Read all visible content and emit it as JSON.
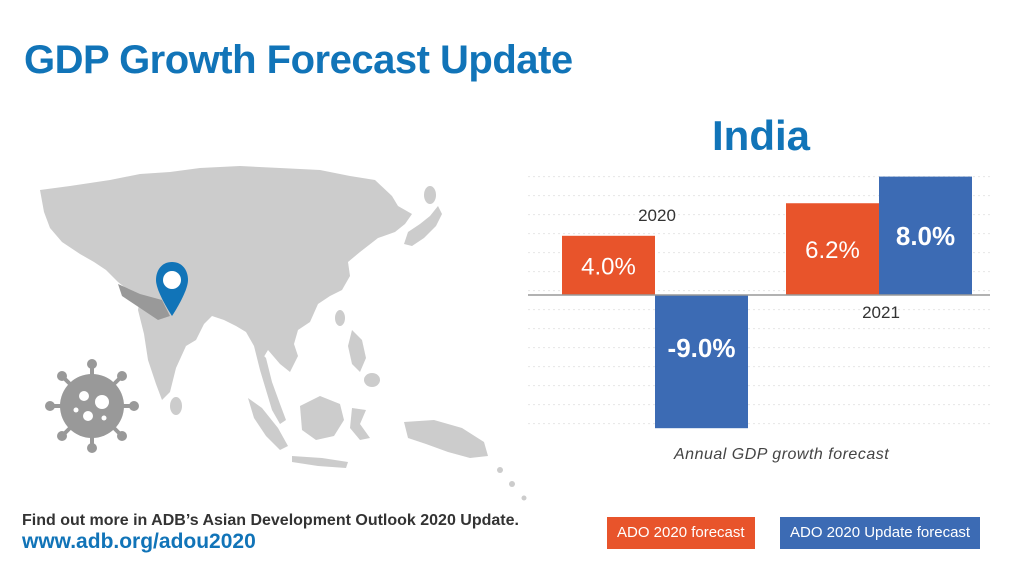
{
  "title": "GDP Growth Forecast Update",
  "country": "India",
  "footer": {
    "text": "Find out more in ADB’s Asian Development Outlook 2020 Update.",
    "link": "www.adb.org/adou2020"
  },
  "icons": {
    "map": "asia-map-icon",
    "pin": "location-pin-icon",
    "virus": "coronavirus-icon"
  },
  "colors": {
    "title": "#1174b8",
    "ado": "#e8542b",
    "update": "#3c6bb4",
    "map": "#cccccc"
  },
  "chart_data": {
    "type": "bar",
    "categories": [
      "2020",
      "2021"
    ],
    "series": [
      {
        "name": "ADO 2020 forecast",
        "values": [
          4.0,
          6.2
        ],
        "labels": [
          "4.0%",
          "6.2%"
        ],
        "color": "#e8542b"
      },
      {
        "name": "ADO 2020 Update forecast",
        "values": [
          -9.0,
          8.0
        ],
        "labels": [
          "-9.0%",
          "8.0%"
        ],
        "color": "#3c6bb4"
      }
    ],
    "caption": "Annual GDP growth forecast",
    "ylim": [
      -9.0,
      8.0
    ],
    "grid": true,
    "legend": [
      "ADO 2020 forecast",
      "ADO 2020 Update forecast"
    ],
    "legend_position": "bottom-right"
  }
}
